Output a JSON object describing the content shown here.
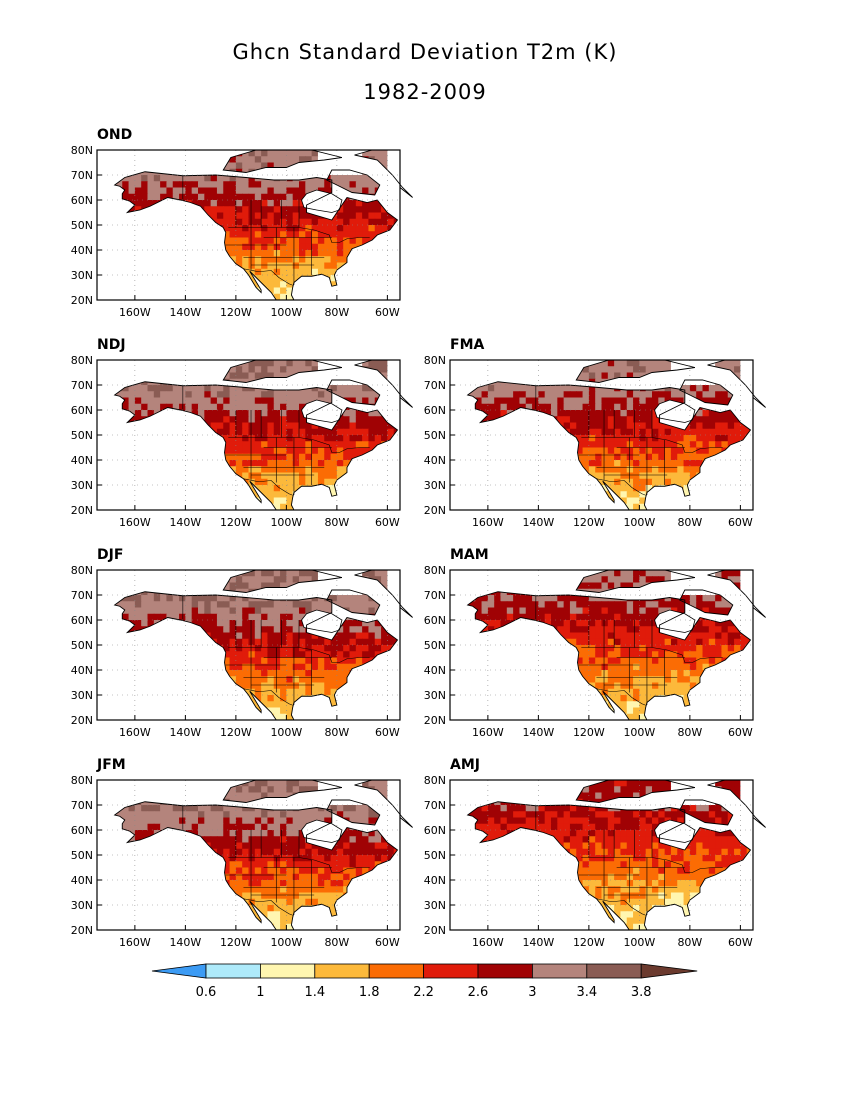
{
  "title": "Ghcn Standard Deviation T2m (K)",
  "subtitle": "1982-2009",
  "panels": [
    {
      "id": "OND",
      "label": "OND",
      "intensity": 0.62
    },
    {
      "id": "NDJ",
      "label": "NDJ",
      "intensity": 0.72
    },
    {
      "id": "FMA",
      "label": "FMA",
      "intensity": 0.6
    },
    {
      "id": "DJF",
      "label": "DJF",
      "intensity": 0.78
    },
    {
      "id": "MAM",
      "label": "MAM",
      "intensity": 0.45
    },
    {
      "id": "JFM",
      "label": "JFM",
      "intensity": 0.72
    },
    {
      "id": "AMJ",
      "label": "AMJ",
      "intensity": 0.3
    }
  ],
  "axes": {
    "lat_labels": [
      "80N",
      "70N",
      "60N",
      "50N",
      "40N",
      "30N",
      "20N"
    ],
    "lon_labels": [
      "160W",
      "140W",
      "120W",
      "100W",
      "80W",
      "60W"
    ]
  },
  "colorbar": {
    "labels": [
      "0.6",
      "1",
      "1.4",
      "1.8",
      "2.2",
      "2.6",
      "3",
      "3.4",
      "3.8"
    ],
    "colors": [
      "#3c9bf4",
      "#aeeafa",
      "#fff6b0",
      "#fcb93b",
      "#fb6c04",
      "#e01b0a",
      "#a00204",
      "#b4847c",
      "#8a5c54",
      "#6b3a2e"
    ]
  }
}
